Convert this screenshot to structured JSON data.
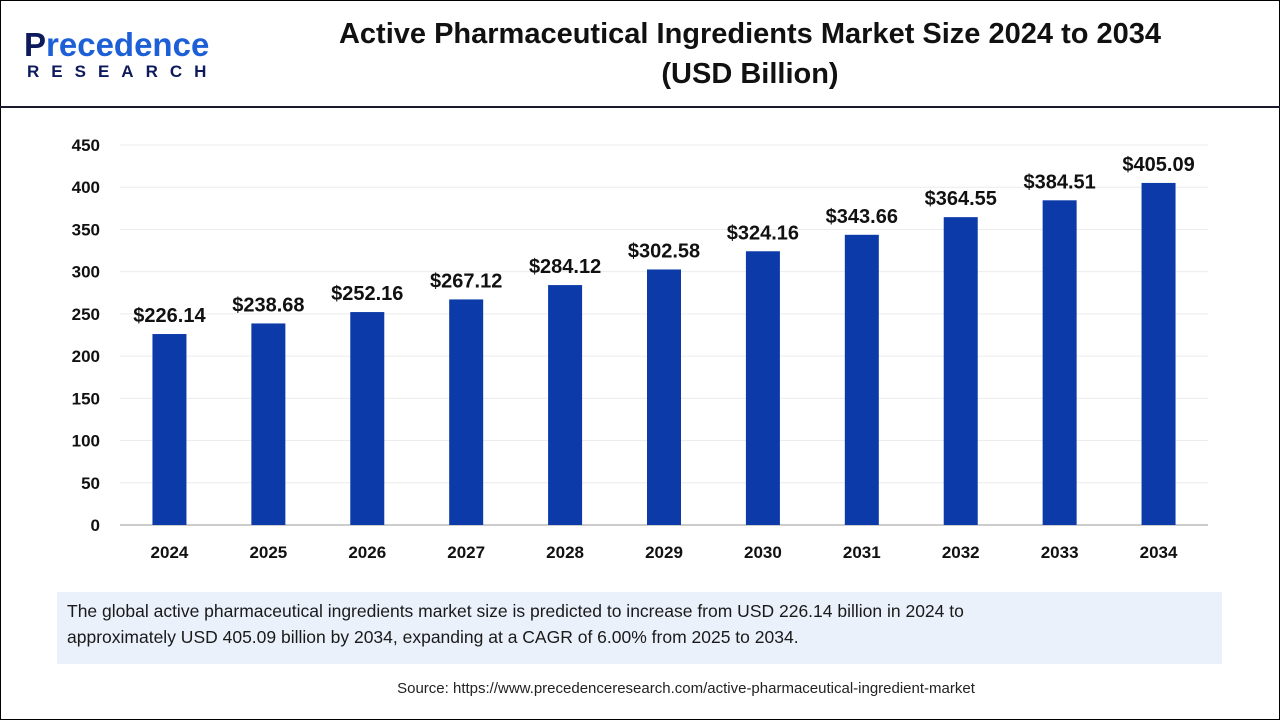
{
  "header": {
    "title_line1": "Active Pharmaceutical Ingredients Market Size 2024 to 2034",
    "title_line2": "(USD Billion)",
    "logo_main": "recedence",
    "logo_initial": "P",
    "logo_sub": "RESEARCH"
  },
  "chart_data": {
    "type": "bar",
    "title": "Active Pharmaceutical Ingredients Market Size 2024 to 2034 (USD Billion)",
    "categories": [
      "2024",
      "2025",
      "2026",
      "2027",
      "2028",
      "2029",
      "2030",
      "2031",
      "2032",
      "2033",
      "2034"
    ],
    "values": [
      226.14,
      238.68,
      252.16,
      267.12,
      284.12,
      302.58,
      324.16,
      343.66,
      364.55,
      384.51,
      405.09
    ],
    "labels": [
      "$226.14",
      "$238.68",
      "$252.16",
      "$267.12",
      "$284.12",
      "$302.58",
      "$324.16",
      "$343.66",
      "$364.55",
      "$384.51",
      "$405.09"
    ],
    "ylim": [
      0,
      450
    ],
    "yticks": [
      0,
      50,
      100,
      150,
      200,
      250,
      300,
      350,
      400,
      450
    ],
    "grid": true,
    "bar_color": "#0c3aa8"
  },
  "summary": {
    "line1": "The global active pharmaceutical ingredients market size is predicted to increase from USD 226.14 billion in 2024 to",
    "line2": "approximately USD 405.09 billion by 2034, expanding at a CAGR of 6.00% from 2025 to 2034."
  },
  "source": "Source: https://www.precedenceresearch.com/active-pharmaceutical-ingredient-market"
}
